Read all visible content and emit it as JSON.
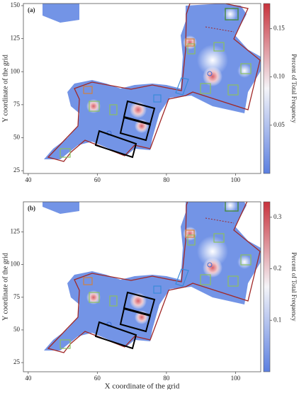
{
  "chart_data": [
    {
      "type": "heatmap",
      "label": "(a)",
      "ylabel": "Y coordinate of the grid",
      "xlim": [
        38.6,
        107.3
      ],
      "xticks": [
        40,
        60,
        80,
        100
      ],
      "ylim": [
        22.9,
        151.6
      ],
      "yticks": [
        25,
        50,
        75,
        100,
        125,
        150
      ],
      "colorbar": {
        "label": "Percent of Total Frequency",
        "lim": [
          0,
          0.176
        ],
        "ticks": [
          0.05,
          {
            "value": 0.1,
            "label": "0.10"
          },
          0.15
        ]
      }
    },
    {
      "type": "heatmap",
      "label": "(b)",
      "ylabel": "Y coordinate of the grid",
      "xlabel": "X coordinate of the grid",
      "xlim": [
        38.6,
        107.3
      ],
      "xticks": [
        40,
        60,
        80,
        100
      ],
      "ylim": [
        18,
        148
      ],
      "yticks": [
        25,
        50,
        75,
        100,
        125
      ],
      "colorbar": {
        "label": "Percent of Total Frequency",
        "lim": [
          0,
          0.33
        ],
        "ticks": [
          0.1,
          0.2,
          0.3
        ]
      }
    }
  ]
}
